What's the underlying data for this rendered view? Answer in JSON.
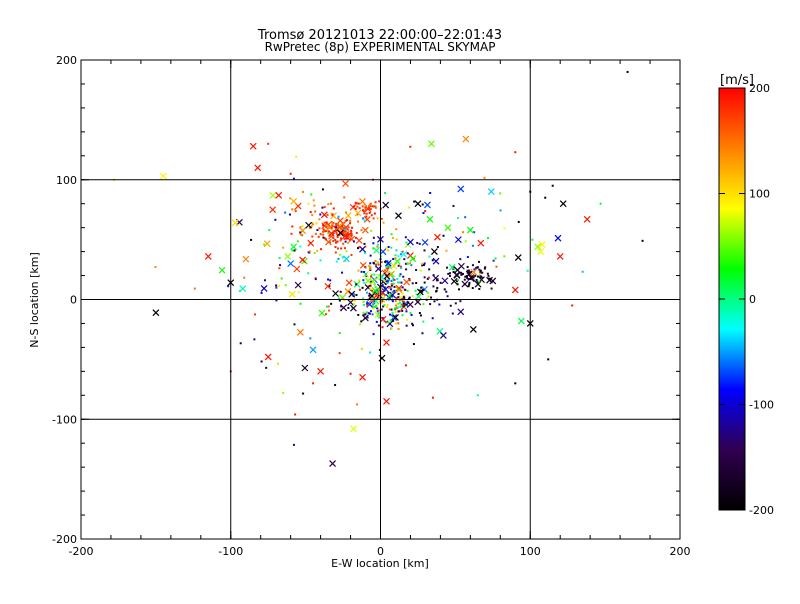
{
  "chart_data": {
    "type": "scatter",
    "title": "Tromsø 20121013 22:00:00–22:01:43",
    "subtitle": "RwPretec (8p) EXPERIMENTAL SKYMAP",
    "xlabel": "E-W location [km]",
    "ylabel": "N-S location [km]",
    "xlim": [
      -200,
      200
    ],
    "ylim": [
      -200,
      200
    ],
    "xticks": [
      "-200",
      "-100",
      "0",
      "100",
      "200"
    ],
    "yticks": [
      "-200",
      "-100",
      "0",
      "100",
      "200"
    ],
    "grid": true,
    "grid_lines_x": [
      -100,
      0,
      100
    ],
    "grid_lines_y": [
      -100,
      0,
      100
    ],
    "colorbar": {
      "label": "[m/s]",
      "range": [
        -200,
        200
      ],
      "ticks": [
        "200",
        "100",
        "0",
        "-100",
        "-200"
      ],
      "colormap": [
        "#000000",
        "#300050",
        "#0000ff",
        "#00ffff",
        "#00ff00",
        "#ffff00",
        "#ff8000",
        "#ff0000"
      ]
    },
    "clusters": [
      {
        "x": -28,
        "y": 55,
        "sx": 6,
        "sy": 6,
        "n": 80,
        "vmin": 160,
        "vmax": 200
      },
      {
        "x": -10,
        "y": 76,
        "sx": 6,
        "sy": 4,
        "n": 40,
        "vmin": 150,
        "vmax": 200
      },
      {
        "x": -35,
        "y": 62,
        "sx": 12,
        "sy": 10,
        "n": 60,
        "vmin": 120,
        "vmax": 200
      },
      {
        "x": 0,
        "y": 0,
        "sx": 12,
        "sy": 11,
        "n": 220,
        "vmin": -200,
        "vmax": 200
      },
      {
        "x": 2,
        "y": 30,
        "sx": 15,
        "sy": 16,
        "n": 130,
        "vmin": -200,
        "vmax": 200
      },
      {
        "x": 60,
        "y": 20,
        "sx": 7,
        "sy": 5,
        "n": 70,
        "vmin": -200,
        "vmax": -150
      },
      {
        "x": 30,
        "y": 5,
        "sx": 14,
        "sy": 12,
        "n": 60,
        "vmin": -200,
        "vmax": -120
      },
      {
        "x": -45,
        "y": 20,
        "sx": 28,
        "sy": 45,
        "n": 110,
        "vmin": -200,
        "vmax": 200
      },
      {
        "x": 40,
        "y": 45,
        "sx": 35,
        "sy": 30,
        "n": 70,
        "vmin": -200,
        "vmax": 200
      }
    ],
    "markers": [
      {
        "x": -85,
        "y": 128,
        "v": 190
      },
      {
        "x": -82,
        "y": 110,
        "v": 190
      },
      {
        "x": -145,
        "y": 103,
        "v": 90
      },
      {
        "x": -97,
        "y": 64,
        "v": 100
      },
      {
        "x": -115,
        "y": 36,
        "v": 190
      },
      {
        "x": -100,
        "y": 14,
        "v": -200
      },
      {
        "x": -150,
        "y": -11,
        "v": -200
      },
      {
        "x": -92,
        "y": 9,
        "v": -10
      },
      {
        "x": -75,
        "y": -48,
        "v": 190
      },
      {
        "x": -72,
        "y": 75,
        "v": 180
      },
      {
        "x": -55,
        "y": 78,
        "v": 180
      },
      {
        "x": -58,
        "y": 82,
        "v": 120
      },
      {
        "x": -68,
        "y": 87,
        "v": 190
      },
      {
        "x": -48,
        "y": 62,
        "v": -200
      },
      {
        "x": -62,
        "y": 36,
        "v": 60
      },
      {
        "x": -58,
        "y": 44,
        "v": 20
      },
      {
        "x": -52,
        "y": 33,
        "v": 190
      },
      {
        "x": -55,
        "y": 12,
        "v": -150
      },
      {
        "x": -60,
        "y": 30,
        "v": -60
      },
      {
        "x": -40,
        "y": -60,
        "v": 190
      },
      {
        "x": -12,
        "y": -65,
        "v": 190
      },
      {
        "x": -18,
        "y": -108,
        "v": 80
      },
      {
        "x": -32,
        "y": -137,
        "v": -150
      },
      {
        "x": 4,
        "y": -85,
        "v": 190
      },
      {
        "x": 4,
        "y": -36,
        "v": 190
      },
      {
        "x": 1,
        "y": -49,
        "v": -200
      },
      {
        "x": 34,
        "y": 130,
        "v": 50
      },
      {
        "x": 57,
        "y": 134,
        "v": 140
      },
      {
        "x": 25,
        "y": 80,
        "v": -200
      },
      {
        "x": 33,
        "y": 67,
        "v": 30
      },
      {
        "x": 38,
        "y": 52,
        "v": 190
      },
      {
        "x": 36,
        "y": 40,
        "v": -200
      },
      {
        "x": 45,
        "y": 60,
        "v": 40
      },
      {
        "x": 52,
        "y": 50,
        "v": -100
      },
      {
        "x": 60,
        "y": 58,
        "v": 30
      },
      {
        "x": 67,
        "y": 47,
        "v": 190
      },
      {
        "x": 42,
        "y": -30,
        "v": -120
      },
      {
        "x": 62,
        "y": -25,
        "v": -200
      },
      {
        "x": 92,
        "y": 35,
        "v": -200
      },
      {
        "x": 90,
        "y": 8,
        "v": 190
      },
      {
        "x": 94,
        "y": -18,
        "v": 10
      },
      {
        "x": 100,
        "y": -20,
        "v": -200
      },
      {
        "x": 105,
        "y": 44,
        "v": 60
      },
      {
        "x": 107,
        "y": 40,
        "v": 80
      },
      {
        "x": 108,
        "y": 46,
        "v": 90
      },
      {
        "x": 120,
        "y": 36,
        "v": 190
      },
      {
        "x": 122,
        "y": 80,
        "v": -200
      },
      {
        "x": 138,
        "y": 67,
        "v": 190
      },
      {
        "x": 10,
        "y": -15,
        "v": -200
      },
      {
        "x": -12,
        "y": 42,
        "v": -120
      },
      {
        "x": 20,
        "y": 48,
        "v": -100
      },
      {
        "x": -5,
        "y": 15,
        "v": 60
      },
      {
        "x": 12,
        "y": 70,
        "v": -200
      },
      {
        "x": -30,
        "y": 5,
        "v": -200
      }
    ],
    "sparse_points": [
      {
        "x": 165,
        "y": 190,
        "v": -200
      },
      {
        "x": 175,
        "y": 49,
        "v": -200
      },
      {
        "x": 147,
        "y": 80,
        "v": 20
      },
      {
        "x": 115,
        "y": 95,
        "v": -200
      },
      {
        "x": 110,
        "y": 85,
        "v": -200
      },
      {
        "x": 100,
        "y": 90,
        "v": -200
      },
      {
        "x": 90,
        "y": 123,
        "v": 190
      },
      {
        "x": 112,
        "y": -50,
        "v": -200
      },
      {
        "x": 128,
        "y": -5,
        "v": 190
      },
      {
        "x": 90,
        "y": -70,
        "v": -200
      },
      {
        "x": 65,
        "y": -80,
        "v": 0
      },
      {
        "x": -178,
        "y": 100,
        "v": 110
      },
      {
        "x": -100,
        "y": -60,
        "v": 190
      },
      {
        "x": -57,
        "y": -96,
        "v": 190
      },
      {
        "x": -65,
        "y": -78,
        "v": 60
      },
      {
        "x": -45,
        "y": -70,
        "v": 190
      },
      {
        "x": -20,
        "y": -62,
        "v": 190
      },
      {
        "x": 17,
        "y": -55,
        "v": 190
      },
      {
        "x": 35,
        "y": -82,
        "v": 190
      },
      {
        "x": -5,
        "y": 100,
        "v": 190
      },
      {
        "x": -60,
        "y": 105,
        "v": 190
      },
      {
        "x": -75,
        "y": 130,
        "v": 180
      }
    ]
  }
}
